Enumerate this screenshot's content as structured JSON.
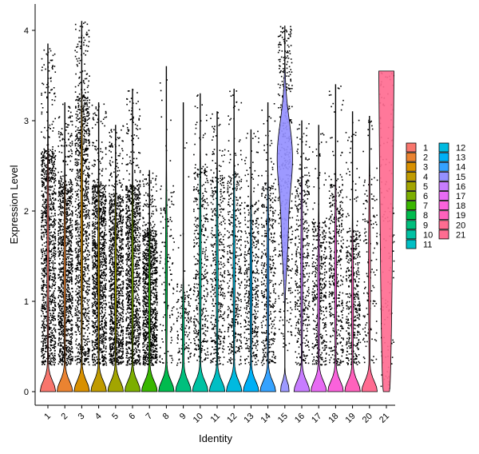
{
  "chart_data": {
    "type": "violin",
    "title": "",
    "xlabel": "Identity",
    "ylabel": "Expression Level",
    "ylim": [
      -0.2,
      4.15
    ],
    "yticks": [
      0,
      1,
      2,
      3,
      4
    ],
    "grid": false,
    "legend_placement": "right",
    "categories": [
      "1",
      "2",
      "3",
      "4",
      "5",
      "6",
      "7",
      "8",
      "9",
      "10",
      "11",
      "12",
      "13",
      "14",
      "15",
      "16",
      "17",
      "18",
      "19",
      "20",
      "21"
    ],
    "colors": [
      "#F8766D",
      "#EA8331",
      "#D89000",
      "#C09B00",
      "#A3A500",
      "#7CAE00",
      "#39B600",
      "#00BB4E",
      "#00BF7D",
      "#00C1A3",
      "#00BFC4",
      "#00BAE0",
      "#00B0F6",
      "#35A2FF",
      "#9590FF",
      "#C77CFF",
      "#E76BF3",
      "#FA62DB",
      "#FF62BC",
      "#FF6C91",
      "#FF6C91"
    ],
    "series": [
      {
        "name": "1",
        "max": 3.85,
        "mode": 0.05,
        "dense_top": 2.7,
        "points": "dense"
      },
      {
        "name": "2",
        "max": 3.2,
        "mode": 0.05,
        "dense_top": 2.35,
        "points": "dense"
      },
      {
        "name": "3",
        "max": 4.1,
        "mode": 0.08,
        "dense_top": 3.3,
        "points": "dense"
      },
      {
        "name": "4",
        "max": 3.2,
        "mode": 0.05,
        "dense_top": 2.3,
        "points": "dense"
      },
      {
        "name": "5",
        "max": 2.95,
        "mode": 0.05,
        "dense_top": 2.2,
        "points": "dense"
      },
      {
        "name": "6",
        "max": 3.35,
        "mode": 0.05,
        "dense_top": 2.3,
        "points": "dense"
      },
      {
        "name": "7",
        "max": 2.45,
        "mode": 0.05,
        "dense_top": 1.8,
        "points": "dense"
      },
      {
        "name": "8",
        "max": 3.6,
        "mode": 0.03,
        "dense_top": 2.3,
        "points": "sparse"
      },
      {
        "name": "9",
        "max": 3.2,
        "mode": 0.03,
        "dense_top": 1.2,
        "points": "sparse"
      },
      {
        "name": "10",
        "max": 3.3,
        "mode": 0.05,
        "dense_top": 2.5,
        "points": "medium"
      },
      {
        "name": "11",
        "max": 3.1,
        "mode": 0.05,
        "dense_top": 2.4,
        "points": "medium"
      },
      {
        "name": "12",
        "max": 3.35,
        "mode": 0.05,
        "dense_top": 2.45,
        "points": "medium"
      },
      {
        "name": "13",
        "max": 2.9,
        "mode": 0.05,
        "dense_top": 2.1,
        "points": "medium"
      },
      {
        "name": "14",
        "max": 3.2,
        "mode": 0.05,
        "dense_top": 2.3,
        "points": "medium"
      },
      {
        "name": "15",
        "max": 4.05,
        "mode": 2.6,
        "dense_top": 3.6,
        "points": "medium"
      },
      {
        "name": "16",
        "max": 3.0,
        "mode": 0.05,
        "dense_top": 2.4,
        "points": "medium"
      },
      {
        "name": "17",
        "max": 2.95,
        "mode": 0.05,
        "dense_top": 1.9,
        "points": "medium"
      },
      {
        "name": "18",
        "max": 3.4,
        "mode": 0.05,
        "dense_top": 2.3,
        "points": "medium"
      },
      {
        "name": "19",
        "max": 3.1,
        "mode": 0.05,
        "dense_top": 1.8,
        "points": "medium"
      },
      {
        "name": "20",
        "max": 3.05,
        "mode": 0.05,
        "dense_top": 2.4,
        "points": "sparse"
      },
      {
        "name": "21",
        "max": 3.55,
        "mode": 2.5,
        "dense_top": 3.55,
        "points": "sparse"
      }
    ]
  }
}
